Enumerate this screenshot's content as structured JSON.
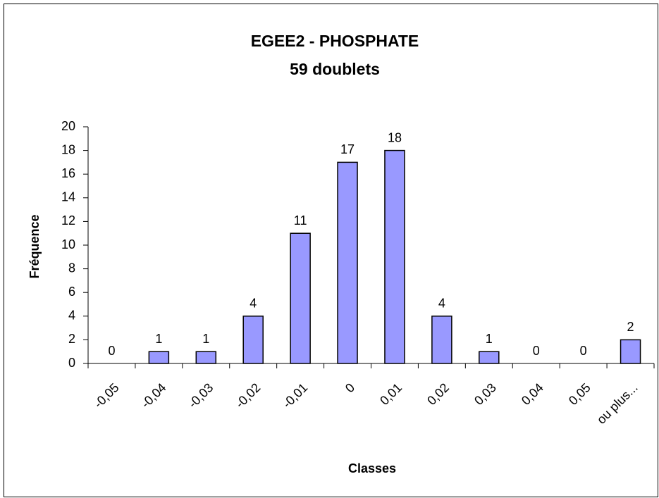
{
  "chart_data": {
    "type": "bar",
    "title": "EGEE2 - PHOSPHATE",
    "subtitle": "59 doublets",
    "x_label": "Classes",
    "y_label": "Fréquence",
    "categories": [
      "-0,05",
      "-0,04",
      "-0,03",
      "-0,02",
      "-0,01",
      "0",
      "0,01",
      "0,02",
      "0,03",
      "0,04",
      "0,05",
      "ou plus..."
    ],
    "values": [
      0,
      1,
      1,
      4,
      11,
      17,
      18,
      4,
      1,
      0,
      0,
      2
    ],
    "color": "#9999ff",
    "ylim": [
      0,
      20
    ],
    "yticks": [
      0,
      2,
      4,
      6,
      8,
      10,
      12,
      14,
      16,
      18,
      20
    ],
    "grid": false
  }
}
